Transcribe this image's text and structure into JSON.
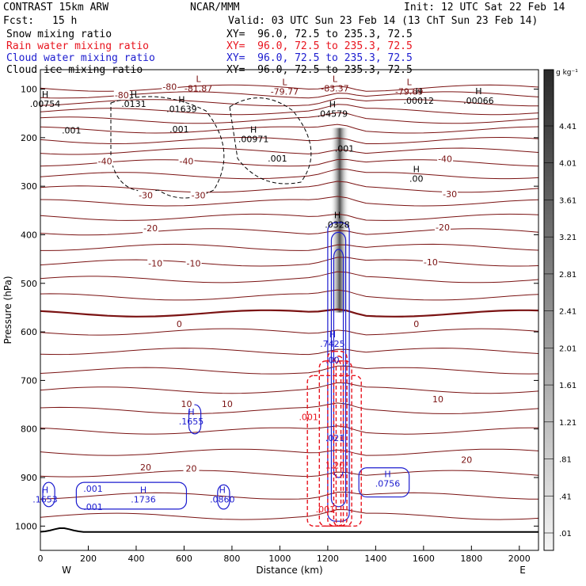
{
  "header": {
    "left_title": "CONTRAST 15km ARW",
    "center_title": "NCAR/MMM",
    "init": "Init: 12 UTC Sat 22 Feb 14",
    "fcst_label": "Fcst:",
    "fcst_value": "15 h",
    "valid": "Valid: 03 UTC Sun 23 Feb 14 (13 ChT Sun 23 Feb 14)",
    "fields": [
      {
        "name": "Snow mixing ratio",
        "xy": "XY=  96.0, 72.5 to 235.3, 72.5",
        "color": "#000000"
      },
      {
        "name": "Rain water mixing ratio",
        "xy": "XY=  96.0, 72.5 to 235.3, 72.5",
        "color": "#e8141e"
      },
      {
        "name": "Cloud water mixing ratio",
        "xy": "XY=  96.0, 72.5 to 235.3, 72.5",
        "color": "#1c1ccf"
      },
      {
        "name": "Cloud ice mixing ratio",
        "xy": "XY=  96.0, 72.5 to 235.3, 72.5",
        "color": "#000000"
      }
    ]
  },
  "chart_data": {
    "type": "contour",
    "xlabel": "Distance (km)",
    "ylabel": "Pressure (hPa)",
    "xlim": [
      0,
      2080
    ],
    "ylim": [
      1050,
      60
    ],
    "x_ticks": [
      0,
      200,
      400,
      600,
      800,
      1000,
      1200,
      1400,
      1600,
      1800,
      2000
    ],
    "y_ticks": [
      100,
      200,
      300,
      400,
      500,
      600,
      700,
      800,
      900,
      1000
    ],
    "x_end_labels": {
      "left": "W",
      "right": "E"
    },
    "colorbar": {
      "unit": "g kg⁻¹",
      "labels": [
        "4.41",
        "4.01",
        "3.61",
        "3.21",
        "2.81",
        "2.41",
        "2.01",
        "1.61",
        "1.21",
        ".81",
        ".41",
        ".01"
      ]
    },
    "temperature_contours": {
      "color": "#7a1212",
      "labels": [
        {
          "text": "-80",
          "x": 540,
          "p": 97
        },
        {
          "text": "-80",
          "x": 340,
          "p": 114
        },
        {
          "text": "-40",
          "x": 270,
          "p": 250
        },
        {
          "text": "-40",
          "x": 610,
          "p": 250
        },
        {
          "text": "-40",
          "x": 1690,
          "p": 245
        },
        {
          "text": "-30",
          "x": 440,
          "p": 320
        },
        {
          "text": "-30",
          "x": 660,
          "p": 320
        },
        {
          "text": "-30",
          "x": 1710,
          "p": 318
        },
        {
          "text": "-20",
          "x": 460,
          "p": 388
        },
        {
          "text": "-20",
          "x": 1680,
          "p": 386
        },
        {
          "text": "-10",
          "x": 480,
          "p": 460
        },
        {
          "text": "-10",
          "x": 640,
          "p": 460
        },
        {
          "text": "-10",
          "x": 1630,
          "p": 458
        },
        {
          "text": "0",
          "x": 580,
          "p": 585
        },
        {
          "text": "0",
          "x": 1570,
          "p": 585
        },
        {
          "text": "10",
          "x": 610,
          "p": 750
        },
        {
          "text": "10",
          "x": 780,
          "p": 750
        },
        {
          "text": "10",
          "x": 1660,
          "p": 740
        },
        {
          "text": "20",
          "x": 440,
          "p": 880
        },
        {
          "text": "20",
          "x": 630,
          "p": 883
        },
        {
          "text": "20",
          "x": 1780,
          "p": 865
        }
      ]
    },
    "extrema_labels": [
      {
        "kind": "L",
        "value": "-81.87",
        "x": 660,
        "p": 92,
        "color": "#7a1212"
      },
      {
        "kind": "L",
        "value": "-79.77",
        "x": 1020,
        "p": 98,
        "color": "#7a1212"
      },
      {
        "kind": "L",
        "value": "-83.37",
        "x": 1230,
        "p": 92,
        "color": "#7a1212"
      },
      {
        "kind": "L",
        "value": "-79.69",
        "x": 1540,
        "p": 98,
        "color": "#7a1212"
      },
      {
        "kind": "H",
        "value": ".00754",
        "x": 20,
        "p": 124,
        "color": "#000000"
      },
      {
        "kind": "H",
        "value": ".0131",
        "x": 390,
        "p": 124,
        "color": "#000000"
      },
      {
        "kind": "H",
        "value": ".01639",
        "x": 590,
        "p": 134,
        "color": "#000000"
      },
      {
        "kind": "H",
        "value": ".04579",
        "x": 1220,
        "p": 144,
        "color": "#000000"
      },
      {
        "kind": "H",
        "value": ".00012",
        "x": 1580,
        "p": 117,
        "color": "#000000"
      },
      {
        "kind": "H",
        "value": ".00066",
        "x": 1830,
        "p": 117,
        "color": "#000000"
      },
      {
        "kind": "H",
        "value": ".00971",
        "x": 890,
        "p": 196,
        "color": "#000000"
      },
      {
        "kind": "H",
        "value": ".00",
        "x": 1570,
        "p": 278,
        "color": "#000000"
      },
      {
        "kind": "H",
        "value": ".0328",
        "x": 1240,
        "p": 372,
        "color": "#000000"
      },
      {
        "kind": "H",
        "value": ".7425",
        "x": 1220,
        "p": 618,
        "color": "#1c1ccf"
      },
      {
        "kind": "H",
        "value": ".1655",
        "x": 630,
        "p": 778,
        "color": "#1c1ccf"
      },
      {
        "kind": "H",
        "value": ".1653",
        "x": 20,
        "p": 938,
        "color": "#1c1ccf"
      },
      {
        "kind": "H",
        "value": ".1736",
        "x": 430,
        "p": 938,
        "color": "#1c1ccf"
      },
      {
        "kind": "H",
        "value": ".0860",
        "x": 760,
        "p": 938,
        "color": "#1c1ccf"
      },
      {
        "kind": "H",
        "value": ".0756",
        "x": 1450,
        "p": 906,
        "color": "#1c1ccf"
      }
    ],
    "minor_labels": [
      {
        "text": ".001",
        "x": 130,
        "p": 185,
        "color": "#000000"
      },
      {
        "text": ".001",
        "x": 580,
        "p": 182,
        "color": "#000000"
      },
      {
        "text": ".001",
        "x": 990,
        "p": 243,
        "color": "#000000"
      },
      {
        "text": ".001",
        "x": 1270,
        "p": 222,
        "color": "#000000"
      },
      {
        "text": ".001",
        "x": 1120,
        "p": 775,
        "color": "#e8141e"
      },
      {
        "text": ".001",
        "x": 1190,
        "p": 965,
        "color": "#e8141e"
      },
      {
        "text": ".001",
        "x": 220,
        "p": 923,
        "color": "#1c1ccf"
      },
      {
        "text": ".001",
        "x": 220,
        "p": 960,
        "color": "#1c1ccf"
      },
      {
        "text": ".00",
        "x": 1220,
        "p": 658,
        "color": "#1c1ccf"
      },
      {
        "text": ".021",
        "x": 1230,
        "p": 818,
        "color": "#1c1ccf"
      },
      {
        "text": "1.20",
        "x": 1230,
        "p": 875,
        "color": "#e8141e"
      }
    ]
  }
}
